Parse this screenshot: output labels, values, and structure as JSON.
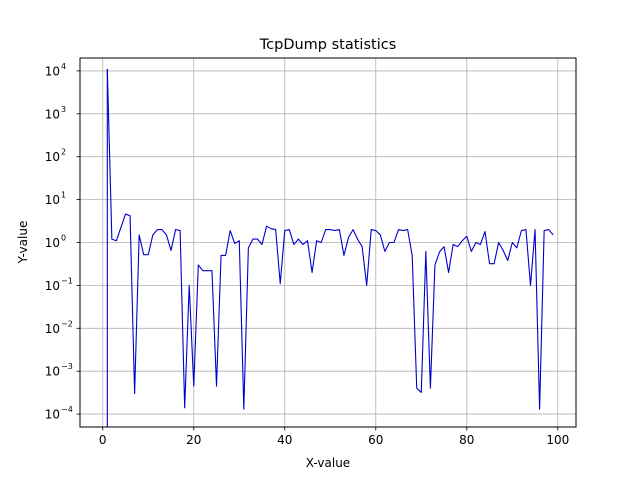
{
  "chart_data": {
    "type": "line",
    "title": "TcpDump statistics",
    "xlabel": "X-value",
    "ylabel": "Y-value",
    "xlim": [
      -5,
      104
    ],
    "ylim": [
      5e-05,
      20000
    ],
    "yscale": "log",
    "grid": true,
    "line_color": "#0000cc",
    "x_ticks": [
      0,
      20,
      40,
      60,
      80,
      100
    ],
    "y_ticks": [
      {
        "value": 0.0001,
        "base": "10",
        "exp": "−4"
      },
      {
        "value": 0.001,
        "base": "10",
        "exp": "−3"
      },
      {
        "value": 0.01,
        "base": "10",
        "exp": "−2"
      },
      {
        "value": 0.1,
        "base": "10",
        "exp": "−1"
      },
      {
        "value": 1,
        "base": "10",
        "exp": "0"
      },
      {
        "value": 10,
        "base": "10",
        "exp": "1"
      },
      {
        "value": 100,
        "base": "10",
        "exp": "2"
      },
      {
        "value": 1000,
        "base": "10",
        "exp": "3"
      },
      {
        "value": 10000,
        "base": "10",
        "exp": "4"
      }
    ],
    "series": [
      {
        "x": [
          1,
          2,
          3,
          5,
          6,
          7,
          8,
          9,
          10,
          11,
          12,
          13,
          14,
          15,
          16,
          17,
          18,
          19,
          20,
          21,
          22,
          23,
          24,
          25,
          26,
          27,
          28,
          29,
          30,
          31,
          32,
          33,
          34,
          35,
          36,
          37,
          38,
          39,
          40,
          41,
          42,
          43,
          44,
          45,
          46,
          47,
          48,
          49,
          50,
          51,
          52,
          53,
          54,
          55,
          56,
          57,
          58,
          59,
          60,
          61,
          62,
          63,
          64,
          65,
          66,
          67,
          68,
          69,
          70,
          71,
          72,
          73,
          74,
          75,
          76,
          77,
          78,
          79,
          80,
          81,
          82,
          83,
          84,
          85,
          86,
          87,
          88,
          89,
          90,
          91,
          92,
          93,
          94,
          95,
          96,
          97,
          98,
          99
        ],
        "values": [
          11000,
          1.2,
          1.1,
          4.6,
          4.2,
          0.0003,
          1.5,
          0.52,
          0.52,
          1.5,
          2.0,
          2.0,
          1.5,
          0.65,
          2.0,
          1.9,
          0.00014,
          0.1,
          0.00045,
          0.3,
          0.22,
          0.22,
          0.22,
          0.00045,
          0.5,
          0.5,
          1.9,
          0.95,
          1.1,
          0.00013,
          0.75,
          1.2,
          1.2,
          0.9,
          2.4,
          2.1,
          2.0,
          0.11,
          1.9,
          2.0,
          0.9,
          1.2,
          0.9,
          1.1,
          0.2,
          1.1,
          1.0,
          2.0,
          2.0,
          1.9,
          2.0,
          0.5,
          1.3,
          2.0,
          1.2,
          0.8,
          0.1,
          2.0,
          1.9,
          1.5,
          0.62,
          1.0,
          1.0,
          2.0,
          1.9,
          2.0,
          0.5,
          0.0004,
          0.00032,
          0.62,
          0.0004,
          0.3,
          0.6,
          0.8,
          0.2,
          0.9,
          0.8,
          1.1,
          1.4,
          0.62,
          1.0,
          0.9,
          1.8,
          0.32,
          0.32,
          1.0,
          0.65,
          0.38,
          1.0,
          0.75,
          1.9,
          2.0,
          0.1,
          2.0,
          0.00013,
          1.9,
          2.0,
          1.5
        ]
      }
    ]
  }
}
